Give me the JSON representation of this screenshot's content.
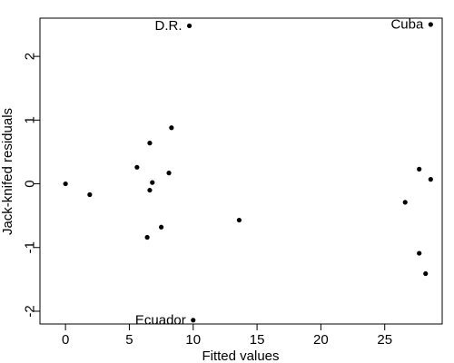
{
  "chart_data": {
    "type": "scatter",
    "xlabel": "Fitted values",
    "ylabel": "Jack-knifed residuals",
    "xlim": [
      -2,
      29.5
    ],
    "ylim": [
      -2.2,
      2.6
    ],
    "xticks": [
      0,
      5,
      10,
      15,
      20,
      25
    ],
    "yticks": [
      -2,
      -1,
      0,
      1,
      2
    ],
    "grid": false,
    "points": [
      {
        "x": 0.0,
        "y": 0.0
      },
      {
        "x": 1.9,
        "y": -0.17
      },
      {
        "x": 5.6,
        "y": 0.26
      },
      {
        "x": 6.4,
        "y": -0.84
      },
      {
        "x": 6.6,
        "y": 0.64
      },
      {
        "x": 6.6,
        "y": -0.1
      },
      {
        "x": 6.8,
        "y": 0.02
      },
      {
        "x": 7.5,
        "y": -0.68
      },
      {
        "x": 8.1,
        "y": 0.17
      },
      {
        "x": 8.3,
        "y": 0.88
      },
      {
        "x": 9.7,
        "y": 2.48,
        "label": "D.R."
      },
      {
        "x": 10.0,
        "y": -2.14,
        "label": "Ecuador"
      },
      {
        "x": 13.6,
        "y": -0.57
      },
      {
        "x": 26.6,
        "y": -0.29
      },
      {
        "x": 27.7,
        "y": 0.23
      },
      {
        "x": 27.7,
        "y": -1.09
      },
      {
        "x": 28.2,
        "y": -1.41
      },
      {
        "x": 28.6,
        "y": 0.07
      },
      {
        "x": 28.6,
        "y": 2.5,
        "label": "Cuba"
      }
    ]
  }
}
